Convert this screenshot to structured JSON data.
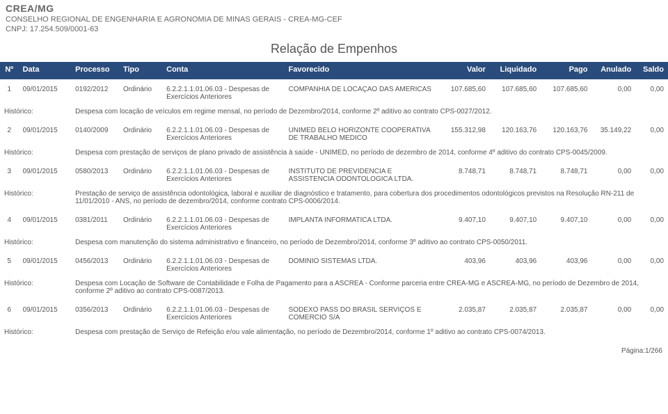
{
  "org": {
    "name": "CREA/MG",
    "desc": "CONSELHO REGIONAL DE ENGENHARIA E AGRONOMIA DE MINAS GERAIS - CREA-MG-CEF",
    "cnpj": "CNPJ: 17.254.509/0001-63"
  },
  "report_title": "Relação de Empenhos",
  "columns": {
    "n": "Nº",
    "data": "Data",
    "processo": "Processo",
    "tipo": "Tipo",
    "conta": "Conta",
    "favorecido": "Favorecido",
    "valor": "Valor",
    "liquidado": "Liquidado",
    "pago": "Pago",
    "anulado": "Anulado",
    "saldo": "Saldo"
  },
  "hist_label": "Histórico:",
  "rows": [
    {
      "n": "1",
      "data": "09/01/2015",
      "processo": "0192/2012",
      "tipo": "Ordinário",
      "conta": "6.2.2.1.1.01.06.03 - Despesas de Exercícios Anteriores",
      "favorecido": "COMPANHIA DE LOCAÇAO DAS AMERICAS",
      "valor": "107.685,60",
      "liquidado": "107.685,60",
      "pago": "107.685,60",
      "anulado": "0,00",
      "saldo": "0,00",
      "historico": "Despesa com locação de veículos em regime mensal, no período de Dezembro/2014, conforme 2º aditivo ao contrato CPS-0027/2012."
    },
    {
      "n": "2",
      "data": "09/01/2015",
      "processo": "0140/2009",
      "tipo": "Ordinário",
      "conta": "6.2.2.1.1.01.06.03 - Despesas de Exercícios Anteriores",
      "favorecido": "UNIMED BELO HORIZONTE COOPERATIVA DE TRABALHO MEDICO",
      "valor": "155.312,98",
      "liquidado": "120.163,76",
      "pago": "120.163,76",
      "anulado": "35.149,22",
      "saldo": "0,00",
      "historico": "Despesa com prestação de serviços de plano privado de assistência à saúde - UNIMED, no período de dezembro de 2014, conforme 4º aditivo do contrato CPS-0045/2009."
    },
    {
      "n": "3",
      "data": "09/01/2015",
      "processo": "0580/2013",
      "tipo": "Ordinário",
      "conta": "6.2.2.1.1.01.06.03 - Despesas de Exercícios Anteriores",
      "favorecido": "INSTITUTO DE PREVIDENCIA E ASSISTENCIA ODONTOLOGICA LTDA.",
      "valor": "8.748,71",
      "liquidado": "8.748,71",
      "pago": "8.748,71",
      "anulado": "0,00",
      "saldo": "0,00",
      "historico": "Prestação de serviço de assistência odontológica, laboral e auxiliar de diagnóstico e tratamento, para cobertura dos procedimentos odontológicos previstos na Resolução RN-211 de 11/01/2010 - ANS, no período de dezembro/2014, conforme contrato CPS-0006/2014."
    },
    {
      "n": "4",
      "data": "09/01/2015",
      "processo": "0381/2011",
      "tipo": "Ordinário",
      "conta": "6.2.2.1.1.01.06.03 - Despesas de Exercícios Anteriores",
      "favorecido": "IMPLANTA INFORMATICA LTDA.",
      "valor": "9.407,10",
      "liquidado": "9.407,10",
      "pago": "9.407,10",
      "anulado": "0,00",
      "saldo": "0,00",
      "historico": "Despesa com manutenção do sistema administrativo e financeiro, no período de Dezembro/2014, conforme 3º aditivo ao contrato CPS-0050/2011."
    },
    {
      "n": "5",
      "data": "09/01/2015",
      "processo": "0456/2013",
      "tipo": "Ordinário",
      "conta": "6.2.2.1.1.01.06.03 - Despesas de Exercícios Anteriores",
      "favorecido": "DOMINIO SISTEMAS LTDA.",
      "valor": "403,96",
      "liquidado": "403,96",
      "pago": "403,96",
      "anulado": "0,00",
      "saldo": "0,00",
      "historico": "Despesa com Locação de Software de Contabilidade e Folha de Pagamento para a ASCREA - Conforme parceria entre CREA-MG e ASCREA-MG, no período de Dezembro de 2014, conforme 2º aditivo ao contrato CPS-0087/2013."
    },
    {
      "n": "6",
      "data": "09/01/2015",
      "processo": "0356/2013",
      "tipo": "Ordinário",
      "conta": "6.2.2.1.1.01.06.03 - Despesas de Exercícios Anteriores",
      "favorecido": "SODEXO PASS DO BRASIL SERVIÇOS E COMERCIO S/A",
      "valor": "2.035,87",
      "liquidado": "2.035,87",
      "pago": "2.035,87",
      "anulado": "0,00",
      "saldo": "0,00",
      "historico": "Despesa com prestação de Serviço de Refeição e/ou vale alimentação, no período de Dezembro/2014, conforme 1º aditivo ao contrato CPS-0074/2013."
    }
  ],
  "footer": "Página:1/266",
  "colors": {
    "header_bg": "#2a4c7c",
    "header_fg": "#ffffff",
    "text": "#555555",
    "background": "#ffffff"
  }
}
